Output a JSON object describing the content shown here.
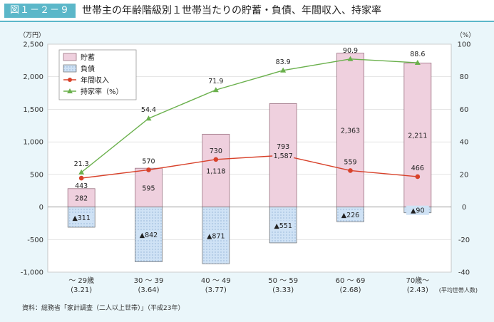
{
  "figure": {
    "label": "図１－２－９",
    "title": "世帯主の年齢階級別１世帯当たりの貯蓄・負債、年間収入、持家率",
    "source": "資料：総務省「家計調査（二人以上世帯）」（平成23年）"
  },
  "colors": {
    "accent": "#5bb7c9",
    "savings_fill": "#efd0de",
    "savings_stroke": "#9a7080",
    "debt_fill": "#cfe2f5",
    "debt_dot": "#8fb0d4",
    "income_line": "#d8412a",
    "homeownership_line": "#6ab04c",
    "background": "#eaf6fa"
  },
  "chart_data": {
    "type": "bar",
    "left_axis_unit": "（万円）",
    "right_axis_unit": "（%）",
    "left_ylim": [
      -1000,
      2500
    ],
    "left_ticks": [
      "-1,000",
      "-500",
      "0",
      "500",
      "1,000",
      "1,500",
      "2,000",
      "2,500"
    ],
    "left_tick_values": [
      -1000,
      -500,
      0,
      500,
      1000,
      1500,
      2000,
      2500
    ],
    "right_ylim": [
      -40,
      100
    ],
    "right_ticks": [
      "-40",
      "-20",
      "0",
      "20",
      "40",
      "60",
      "80",
      "100"
    ],
    "right_tick_values": [
      -40,
      -20,
      0,
      20,
      40,
      60,
      80,
      100
    ],
    "grid": true,
    "legend_position": "top-left",
    "categories": [
      "～ 29歳",
      "30 ～ 39",
      "40 ～ 49",
      "50 ～ 59",
      "60 ～ 69",
      "70歳～"
    ],
    "household_sizes": [
      "(3.21)",
      "(3.64)",
      "(3.77)",
      "(3.33)",
      "(2.68)",
      "(2.43)"
    ],
    "household_size_note": "(平均世帯人数)",
    "series": [
      {
        "name": "貯蓄",
        "kind": "bar",
        "axis": "left",
        "values": [
          282,
          595,
          1118,
          1587,
          2363,
          2211
        ],
        "labels": [
          "282",
          "595",
          "1,118",
          "1,587",
          "2,363",
          "2,211"
        ]
      },
      {
        "name": "負債",
        "kind": "bar",
        "axis": "left",
        "values": [
          -311,
          -842,
          -871,
          -551,
          -226,
          -90
        ],
        "labels": [
          "▲311",
          "▲842",
          "▲871",
          "▲551",
          "▲226",
          "▲90"
        ]
      },
      {
        "name": "年間収入",
        "kind": "line",
        "axis": "left",
        "values": [
          443,
          570,
          730,
          793,
          559,
          466
        ],
        "labels": [
          "443",
          "570",
          "730",
          "793",
          "559",
          "466"
        ]
      },
      {
        "name": "持家率（%）",
        "kind": "line",
        "axis": "right",
        "values": [
          21.3,
          54.4,
          71.9,
          83.9,
          90.9,
          88.6
        ],
        "labels": [
          "21.3",
          "54.4",
          "71.9",
          "83.9",
          "90.9",
          "88.6"
        ]
      }
    ]
  }
}
